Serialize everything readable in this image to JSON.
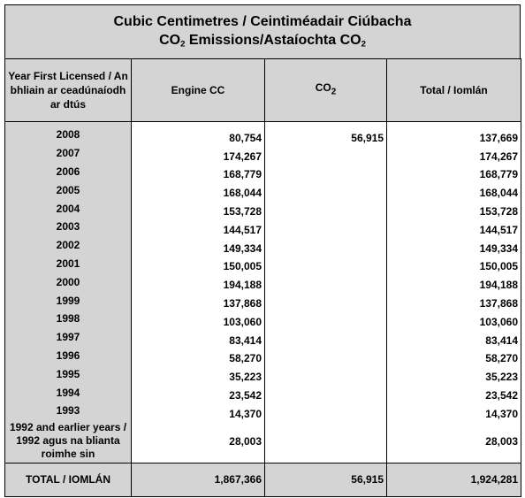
{
  "title": {
    "line1": "Cubic Centimetres / Ceintiméadair Ciúbacha",
    "line2_prefix": "CO",
    "line2_sub": "2",
    "line2_mid": " Emissions/Astaíochta CO",
    "line2_sub2": "2"
  },
  "headers": {
    "year": "Year First Licensed / An bhliain ar ceadúnaíodh ar dtús",
    "engine": "Engine CC",
    "co2_prefix": "CO",
    "co2_sub": "2",
    "total": "Total / Iomlán"
  },
  "rows": [
    {
      "year": "2008",
      "engine": "80,754",
      "co2": "56,915",
      "total": "137,669"
    },
    {
      "year": "2007",
      "engine": "174,267",
      "co2": "",
      "total": "174,267"
    },
    {
      "year": "2006",
      "engine": "168,779",
      "co2": "",
      "total": "168,779"
    },
    {
      "year": "2005",
      "engine": "168,044",
      "co2": "",
      "total": "168,044"
    },
    {
      "year": "2004",
      "engine": "153,728",
      "co2": "",
      "total": "153,728"
    },
    {
      "year": "2003",
      "engine": "144,517",
      "co2": "",
      "total": "144,517"
    },
    {
      "year": "2002",
      "engine": "149,334",
      "co2": "",
      "total": "149,334"
    },
    {
      "year": "2001",
      "engine": "150,005",
      "co2": "",
      "total": "150,005"
    },
    {
      "year": "2000",
      "engine": "194,188",
      "co2": "",
      "total": "194,188"
    },
    {
      "year": "1999",
      "engine": "137,868",
      "co2": "",
      "total": "137,868"
    },
    {
      "year": "1998",
      "engine": "103,060",
      "co2": "",
      "total": "103,060"
    },
    {
      "year": "1997",
      "engine": "83,414",
      "co2": "",
      "total": "83,414"
    },
    {
      "year": "1996",
      "engine": "58,270",
      "co2": "",
      "total": "58,270"
    },
    {
      "year": "1995",
      "engine": "35,223",
      "co2": "",
      "total": "35,223"
    },
    {
      "year": "1994",
      "engine": "23,542",
      "co2": "",
      "total": "23,542"
    },
    {
      "year": "1993",
      "engine": "14,370",
      "co2": "",
      "total": "14,370"
    },
    {
      "year": "1992 and earlier years / 1992 agus na blianta roimhe sin",
      "engine": "28,003",
      "co2": "",
      "total": "28,003"
    }
  ],
  "totals": {
    "label": "TOTAL / IOMLÁN",
    "engine": "1,867,366",
    "co2": "56,915",
    "total": "1,924,281"
  },
  "colors": {
    "header_fill": "#d4d4d4",
    "border": "#000000"
  }
}
